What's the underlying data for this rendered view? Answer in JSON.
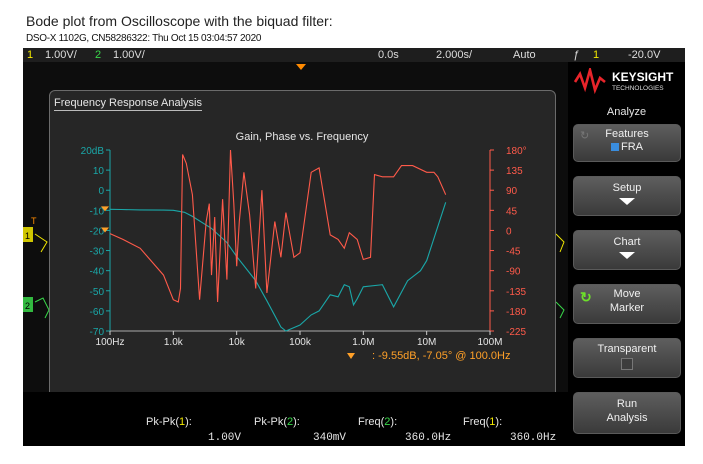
{
  "caption": "Bode plot from Oscilloscope with the biquad filter:",
  "subcaption": "DSO-X 1102G, CN58286322: Thu Oct 15 03:04:57 2020",
  "topbar": {
    "ch1_num": "1",
    "ch1_scale": "1.00V/",
    "ch2_num": "2",
    "ch2_scale": "1.00V/",
    "time_offset": "0.0s",
    "time_scale": "2.000s/",
    "trigger_mode": "Auto",
    "trig_symbol": "ƒ",
    "trig_ch": "1",
    "trig_level": "-20.0V"
  },
  "panel": {
    "title": "Frequency Response Analysis",
    "chart_title": "Gain, Phase vs. Frequency",
    "marker_readout": ": -9.55dB, -7.05° @ 100.0Hz"
  },
  "markers": {
    "ch1": "1",
    "ch2": "2",
    "trig": "T"
  },
  "chart_data": {
    "type": "line",
    "title": "Gain, Phase vs. Frequency",
    "x_scale": "log",
    "xlim": [
      100,
      100000000
    ],
    "x_ticks": [
      {
        "v": 100,
        "label": "100Hz"
      },
      {
        "v": 1000,
        "label": "1.0k"
      },
      {
        "v": 10000,
        "label": "10k"
      },
      {
        "v": 100000,
        "label": "100k"
      },
      {
        "v": 1000000,
        "label": "1.0M"
      },
      {
        "v": 10000000,
        "label": "10M"
      },
      {
        "v": 100000000,
        "label": "100M"
      }
    ],
    "y_left": {
      "unit": "dB",
      "lim": [
        -70,
        20
      ],
      "ticks": [
        "20dB",
        "10",
        "0",
        "-10",
        "-20",
        "-30",
        "-40",
        "-50",
        "-60",
        "-70"
      ],
      "color": "#1aa7a8"
    },
    "y_right": {
      "unit": "deg",
      "lim": [
        -225,
        180
      ],
      "ticks": [
        "180°",
        "135",
        "90",
        "45",
        "0",
        "-45",
        "-90",
        "-135",
        "-180",
        "-225"
      ],
      "color": "#ff5a4a"
    },
    "grid": false,
    "series": [
      {
        "axis": "left",
        "color": "#1aa7a8",
        "x": [
          100,
          150,
          300,
          700,
          1000,
          1500,
          2000,
          4000,
          7000,
          10000,
          20000,
          30000,
          50000,
          60000,
          100000,
          150000,
          200000,
          300000,
          400000,
          500000,
          600000,
          700000,
          800000,
          1000000,
          2000000,
          3000000,
          5000000,
          8000000,
          10000000,
          20000000
        ],
        "y": [
          -9.5,
          -9.6,
          -9.8,
          -9.9,
          -10,
          -11,
          -13,
          -19,
          -26,
          -33,
          -45,
          -55,
          -68,
          -70,
          -67,
          -62,
          -60,
          -52,
          -53,
          -47,
          -48,
          -57,
          -54,
          -48,
          -47,
          -58,
          -45,
          -40,
          -35,
          -6
        ]
      },
      {
        "axis": "right",
        "color": "#ff5a4a",
        "x": [
          100,
          160,
          300,
          700,
          1000,
          1200,
          1300,
          1400,
          1600,
          2000,
          2600,
          3300,
          3700,
          4000,
          4500,
          5000,
          6000,
          7000,
          8000,
          9000,
          10000,
          11000,
          13000,
          16000,
          20000,
          25000,
          30000,
          40000,
          50000,
          60000,
          80000,
          100000,
          150000,
          200000,
          300000,
          400000,
          500000,
          600000,
          800000,
          1000000,
          1300000,
          1500000,
          2000000,
          3000000,
          4000000,
          6000000,
          10000000,
          13000000,
          15000000,
          20000000
        ],
        "y": [
          -7,
          -20,
          -40,
          -100,
          -155,
          -160,
          -130,
          170,
          150,
          80,
          -155,
          20,
          60,
          -100,
          30,
          -160,
          70,
          -110,
          180,
          60,
          -80,
          20,
          130,
          35,
          -130,
          90,
          -140,
          20,
          -60,
          40,
          -60,
          -50,
          130,
          140,
          -10,
          -20,
          -40,
          -5,
          -20,
          -65,
          -60,
          125,
          120,
          120,
          145,
          145,
          130,
          130,
          120,
          80
        ]
      }
    ]
  },
  "side": {
    "brand": "KEYSIGHT",
    "brand_sub": "TECHNOLOGIES",
    "menu_title": "Analyze",
    "features_label": "Features",
    "features_value": "FRA",
    "setup_label": "Setup",
    "chart_label": "Chart",
    "move_marker_label": "Move",
    "move_marker_label2": "Marker",
    "transparent_label": "Transparent",
    "run_label": "Run",
    "run_label2": "Analysis"
  },
  "measurements": [
    {
      "label": "Pk-Pk",
      "ch": "1",
      "value": "1.00V"
    },
    {
      "label": "Pk-Pk",
      "ch": "2",
      "value": "340mV"
    },
    {
      "label": "Freq",
      "ch": "2",
      "value": "360.0Hz"
    },
    {
      "label": "Freq",
      "ch": "1",
      "value": "360.0Hz"
    }
  ]
}
